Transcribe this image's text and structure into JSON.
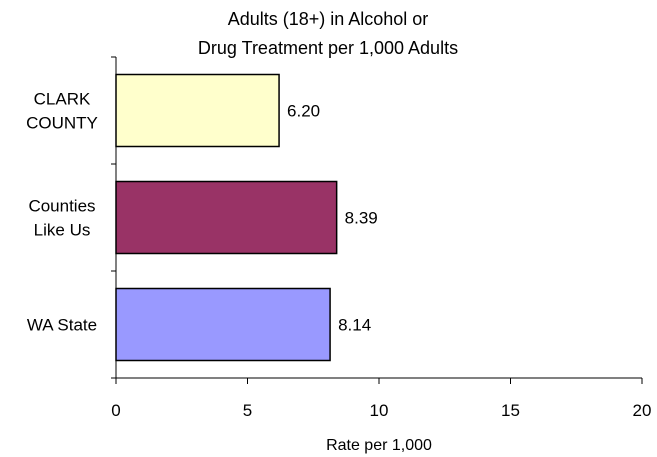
{
  "chart_data": {
    "type": "bar",
    "orientation": "horizontal",
    "title": [
      "Adults (18+) in Alcohol or",
      "Drug Treatment per 1,000 Adults"
    ],
    "xlabel": "Rate per 1,000",
    "ylabel": "",
    "categories": [
      [
        "CLARK",
        "COUNTY"
      ],
      [
        "Counties",
        "Like Us"
      ],
      [
        "WA State"
      ]
    ],
    "values": [
      6.2,
      8.39,
      8.14
    ],
    "value_labels": [
      "6.20",
      "8.39",
      "8.14"
    ],
    "colors": [
      "#FFFFCC",
      "#993366",
      "#9999FF"
    ],
    "xlim": [
      0,
      20
    ],
    "xticks": [
      0,
      5,
      10,
      15,
      20
    ],
    "grid": false,
    "legend": "none"
  }
}
